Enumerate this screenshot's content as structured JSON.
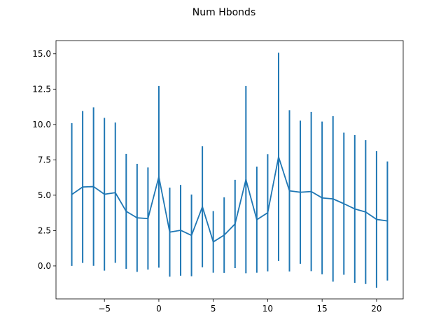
{
  "chart_data": {
    "type": "line",
    "title": "Num Hbonds",
    "xlabel": "",
    "ylabel": "",
    "xlim": [
      -9.45,
      22.45
    ],
    "ylim": [
      -2.33,
      15.93
    ],
    "xticks": [
      -5,
      0,
      5,
      10,
      15,
      20
    ],
    "xtick_labels": [
      "−5",
      "0",
      "5",
      "10",
      "15",
      "20"
    ],
    "yticks": [
      0.0,
      2.5,
      5.0,
      7.5,
      10.0,
      12.5,
      15.0
    ],
    "ytick_labels": [
      "0.0",
      "2.5",
      "5.0",
      "7.5",
      "10.0",
      "12.5",
      "15.0"
    ],
    "grid": false,
    "series": [
      {
        "color": "#1f77b4",
        "x": [
          -8,
          -7,
          -6,
          -5,
          -4,
          -3,
          -2,
          -1,
          0,
          1,
          2,
          3,
          4,
          5,
          6,
          7,
          8,
          9,
          10,
          11,
          12,
          13,
          14,
          15,
          16,
          17,
          18,
          19,
          20,
          21
        ],
        "y": [
          5.05,
          5.58,
          5.61,
          5.07,
          5.18,
          3.86,
          3.4,
          3.35,
          6.3,
          2.39,
          2.52,
          2.16,
          4.18,
          1.7,
          2.18,
          2.97,
          6.1,
          3.27,
          3.76,
          7.71,
          5.31,
          5.21,
          5.26,
          4.81,
          4.74,
          4.4,
          4.03,
          3.81,
          3.29,
          3.18
        ],
        "yerr": [
          5.05,
          5.37,
          5.6,
          5.4,
          4.96,
          4.06,
          3.82,
          3.61,
          6.42,
          3.15,
          3.21,
          2.89,
          4.28,
          2.18,
          2.67,
          3.12,
          6.62,
          3.75,
          4.14,
          7.36,
          5.7,
          5.06,
          5.63,
          5.4,
          5.85,
          5.02,
          5.22,
          5.09,
          4.83,
          4.21
        ]
      }
    ]
  }
}
